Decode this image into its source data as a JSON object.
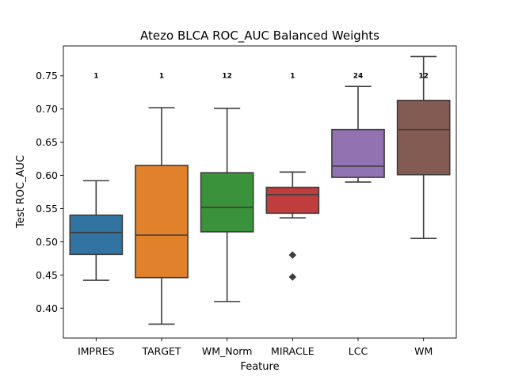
{
  "chart_data": {
    "type": "box",
    "title": "Atezo BLCA ROC_AUC Balanced Weights",
    "xlabel": "Feature",
    "ylabel": "Test ROC_AUC",
    "ylim": [
      0.355,
      0.795
    ],
    "yticks": [
      0.4,
      0.45,
      0.5,
      0.55,
      0.6,
      0.65,
      0.7,
      0.75
    ],
    "ytick_labels": [
      "0.40",
      "0.45",
      "0.50",
      "0.55",
      "0.60",
      "0.65",
      "0.70",
      "0.75"
    ],
    "grid": false,
    "count_label_y": 0.75,
    "categories": [
      "IMPRES",
      "TARGET",
      "WM_Norm",
      "MIRACLE",
      "LCC",
      "WM"
    ],
    "colors": [
      "#3274a1",
      "#e1812c",
      "#3a923a",
      "#c03d3e",
      "#9372b2",
      "#845b53"
    ],
    "counts": [
      "1",
      "1",
      "12",
      "1",
      "24",
      "12"
    ],
    "boxes": [
      {
        "whisker_low": 0.442,
        "q1": 0.481,
        "median": 0.514,
        "q3": 0.54,
        "whisker_high": 0.592,
        "outliers": []
      },
      {
        "whisker_low": 0.376,
        "q1": 0.446,
        "median": 0.51,
        "q3": 0.615,
        "whisker_high": 0.702,
        "outliers": []
      },
      {
        "whisker_low": 0.41,
        "q1": 0.515,
        "median": 0.552,
        "q3": 0.604,
        "whisker_high": 0.701,
        "outliers": []
      },
      {
        "whisker_low": 0.536,
        "q1": 0.543,
        "median": 0.571,
        "q3": 0.582,
        "whisker_high": 0.605,
        "outliers": [
          0.48,
          0.447
        ]
      },
      {
        "whisker_low": 0.59,
        "q1": 0.597,
        "median": 0.614,
        "q3": 0.669,
        "whisker_high": 0.734,
        "outliers": []
      },
      {
        "whisker_low": 0.505,
        "q1": 0.601,
        "median": 0.669,
        "q3": 0.713,
        "whisker_high": 0.779,
        "outliers": []
      }
    ]
  }
}
